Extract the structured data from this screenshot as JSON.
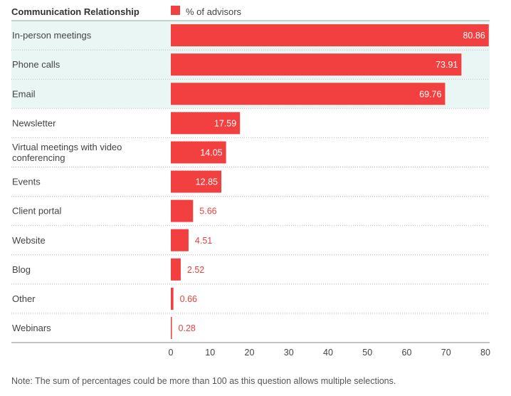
{
  "chart_data": {
    "type": "bar",
    "orientation": "horizontal",
    "category_header": "Communication Relationship",
    "categories": [
      "In-person meetings",
      "Phone calls",
      "Email",
      "Newsletter",
      "Virtual meetings with video conferencing",
      "Events",
      "Client portal",
      "Website",
      "Blog",
      "Other",
      "Webinars"
    ],
    "series": [
      {
        "name": "% of advisors",
        "values": [
          80.86,
          73.91,
          69.76,
          17.59,
          14.05,
          12.85,
          5.66,
          4.51,
          2.52,
          0.66,
          0.28
        ]
      }
    ],
    "highlighted_categories": [
      "In-person meetings",
      "Phone calls",
      "Email"
    ],
    "xlim": [
      0,
      80
    ],
    "xticks": [
      0,
      10,
      20,
      30,
      40,
      50,
      60,
      70,
      80
    ],
    "legend_position": "top",
    "grid": "dotted row separators",
    "colors": {
      "bar": "#f23f3f",
      "highlight_row": "#e9f6f3",
      "label_inside": "#ffffff",
      "label_outside": "#e8413f"
    }
  },
  "note": "Note: The sum of percentages could be more than 100 as this question allows multiple selections."
}
